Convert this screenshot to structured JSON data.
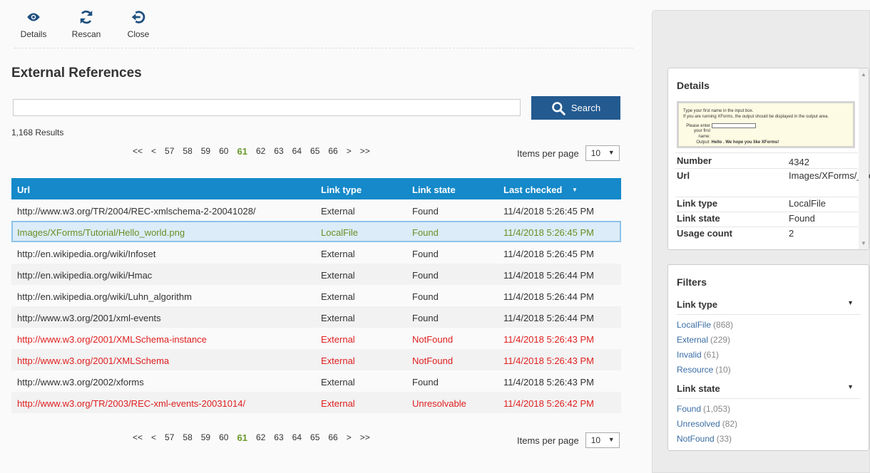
{
  "toolbar": {
    "details": "Details",
    "rescan": "Rescan",
    "close": "Close"
  },
  "page_title": "External References",
  "search": {
    "placeholder": "",
    "value": "",
    "button": "Search"
  },
  "result_count": "1,168 Results",
  "pager": [
    "<<",
    "<",
    "57",
    "58",
    "59",
    "60",
    "61",
    "62",
    "63",
    "64",
    "65",
    "66",
    ">",
    ">>"
  ],
  "pager_active": "61",
  "items_per_page": {
    "label": "Items per page",
    "value": "10"
  },
  "table": {
    "headers": [
      "Url",
      "Link type",
      "Link state",
      "Last checked"
    ],
    "sort_indicator": "▼",
    "rows": [
      {
        "url": "http://www.w3.org/TR/2004/REC-xmlschema-2-20041028/",
        "type": "External",
        "state": "Found",
        "checked": "11/4/2018 5:26:45 PM",
        "color": "#333333"
      },
      {
        "url": "Images/XForms/Tutorial/Hello_world.png",
        "type": "LocalFile",
        "state": "Found",
        "checked": "11/4/2018 5:26:45 PM",
        "color": "#6b8e23"
      },
      {
        "url": "http://en.wikipedia.org/wiki/Infoset",
        "type": "External",
        "state": "Found",
        "checked": "11/4/2018 5:26:45 PM",
        "color": "#333333"
      },
      {
        "url": "http://en.wikipedia.org/wiki/Hmac",
        "type": "External",
        "state": "Found",
        "checked": "11/4/2018 5:26:44 PM",
        "color": "#333333"
      },
      {
        "url": "http://en.wikipedia.org/wiki/Luhn_algorithm",
        "type": "External",
        "state": "Found",
        "checked": "11/4/2018 5:26:44 PM",
        "color": "#333333"
      },
      {
        "url": "http://www.w3.org/2001/xml-events",
        "type": "External",
        "state": "Found",
        "checked": "11/4/2018 5:26:44 PM",
        "color": "#333333"
      },
      {
        "url": "http://www.w3.org/2001/XMLSchema-instance",
        "type": "External",
        "state": "NotFound",
        "checked": "11/4/2018 5:26:43 PM",
        "color": "#e02020"
      },
      {
        "url": "http://www.w3.org/2001/XMLSchema",
        "type": "External",
        "state": "NotFound",
        "checked": "11/4/2018 5:26:43 PM",
        "color": "#e02020"
      },
      {
        "url": "http://www.w3.org/2002/xforms",
        "type": "External",
        "state": "Found",
        "checked": "11/4/2018 5:26:43 PM",
        "color": "#333333"
      },
      {
        "url": "http://www.w3.org/TR/2003/REC-xml-events-20031014/",
        "type": "External",
        "state": "Unresolvable",
        "checked": "11/4/2018 5:26:42 PM",
        "color": "#e02020"
      }
    ]
  },
  "details": {
    "title": "Details",
    "preview": {
      "line1": "Type your first name in the input box.",
      "line2": "If you are running XForms, the output should be displayed in the output area.",
      "prompt1": "Please enter",
      "prompt2": "your first",
      "prompt3": "name:",
      "output_label": "Output:",
      "output_text": "Hello . We hope you like XForms!"
    },
    "props": [
      {
        "k": "Number",
        "v": "4342"
      },
      {
        "k": "Url",
        "v": "Images/XForms/_world.png"
      },
      {
        "k": "Link type",
        "v": "LocalFile"
      },
      {
        "k": "Link state",
        "v": "Found"
      },
      {
        "k": "Usage count",
        "v": "2"
      }
    ]
  },
  "filters": {
    "title": "Filters",
    "link_type": {
      "label": "Link type",
      "items": [
        {
          "name": "LocalFile",
          "count": "(868)"
        },
        {
          "name": "External",
          "count": "(229)"
        },
        {
          "name": "Invalid",
          "count": "(61)"
        },
        {
          "name": "Resource",
          "count": "(10)"
        }
      ]
    },
    "link_state": {
      "label": "Link state",
      "items": [
        {
          "name": "Found",
          "count": "(1,053)"
        },
        {
          "name": "Unresolved",
          "count": "(82)"
        },
        {
          "name": "NotFound",
          "count": "(33)"
        }
      ]
    }
  }
}
